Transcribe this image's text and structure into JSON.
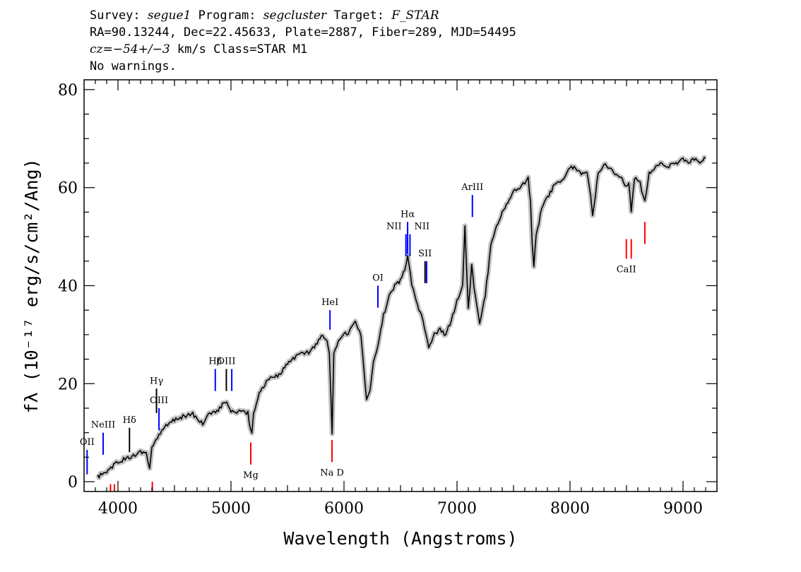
{
  "header": {
    "line1": {
      "survey_label": "Survey: ",
      "survey": "segue1",
      "program_label": " Program: ",
      "program": "segcluster",
      "target_label": " Target: ",
      "target": "F_STAR"
    },
    "line2": "RA=90.13244, Dec=22.45633, Plate=2887, Fiber=289, MJD=54495",
    "line3": {
      "cz_label": "cz=",
      "cz_value": "−54+/−3",
      "rest": " km/s Class=STAR M1"
    },
    "line4": "No warnings."
  },
  "chart_data": {
    "type": "line",
    "title": "",
    "xlabel": "Wavelength (Angstroms)",
    "ylabel": "fλ (10⁻¹⁷ erg/s/cm²/Ang)",
    "xlim": [
      3700,
      9300
    ],
    "ylim": [
      -2,
      82
    ],
    "xticks": [
      4000,
      5000,
      6000,
      7000,
      8000,
      9000
    ],
    "yticks": [
      0,
      20,
      40,
      60,
      80
    ],
    "grid": false,
    "legend": "none",
    "series": [
      {
        "color": "#000000",
        "error_color": "#c0c0c0",
        "x": [
          3820,
          3900,
          3950,
          4000,
          4050,
          4100,
          4150,
          4200,
          4250,
          4280,
          4300,
          4350,
          4400,
          4450,
          4500,
          4550,
          4600,
          4650,
          4700,
          4750,
          4800,
          4850,
          4900,
          4950,
          5000,
          5050,
          5100,
          5150,
          5170,
          5185,
          5200,
          5250,
          5300,
          5350,
          5400,
          5450,
          5500,
          5550,
          5600,
          5650,
          5700,
          5750,
          5800,
          5850,
          5870,
          5885,
          5895,
          5910,
          5950,
          6000,
          6050,
          6100,
          6150,
          6180,
          6200,
          6230,
          6260,
          6300,
          6350,
          6400,
          6450,
          6500,
          6550,
          6564,
          6600,
          6650,
          6700,
          6750,
          6800,
          6850,
          6900,
          6950,
          7000,
          7050,
          7070,
          7100,
          7130,
          7150,
          7200,
          7250,
          7300,
          7350,
          7400,
          7450,
          7500,
          7550,
          7600,
          7630,
          7650,
          7665,
          7680,
          7700,
          7750,
          7800,
          7850,
          7900,
          7950,
          8000,
          8050,
          8100,
          8150,
          8183,
          8200,
          8250,
          8300,
          8350,
          8400,
          8450,
          8498,
          8520,
          8542,
          8570,
          8620,
          8662,
          8700,
          8750,
          8800,
          8850,
          8900,
          8950,
          9000,
          9050,
          9100,
          9150,
          9200
        ],
        "y": [
          1,
          2,
          3,
          4,
          4.5,
          5,
          5.5,
          6,
          6,
          2.5,
          7,
          9,
          11,
          12,
          12.5,
          13,
          13.5,
          14,
          13,
          12,
          13.5,
          14,
          15,
          16.5,
          14.5,
          14,
          14.5,
          14,
          11,
          9.5,
          14,
          18,
          20,
          21,
          21.5,
          22.5,
          24,
          25,
          26,
          26,
          26.5,
          28,
          30,
          29,
          26,
          17,
          10,
          26,
          29,
          30,
          30.5,
          33,
          30,
          22,
          17,
          19,
          24,
          28,
          34,
          38,
          40,
          41,
          44,
          46,
          40,
          36,
          33,
          27,
          30,
          31,
          30,
          33,
          37,
          40,
          52,
          35,
          44,
          40,
          32,
          38,
          48,
          52,
          55,
          57,
          59,
          60,
          61,
          62,
          57,
          49,
          44,
          50,
          56,
          58,
          60,
          61,
          62,
          64,
          64,
          63,
          63,
          58,
          54,
          63,
          65,
          64,
          63,
          62,
          60,
          61,
          55,
          62,
          61,
          57,
          63,
          64,
          65,
          64,
          65,
          65,
          66,
          65,
          66,
          65,
          66
        ]
      }
    ],
    "annotations": [
      {
        "label": "OII",
        "x": 3727,
        "color": "#0000ff",
        "top": 6.5,
        "bottom": 1.5,
        "position": "above"
      },
      {
        "label": "NeIII",
        "x": 3869,
        "color": "#0000ff",
        "top": 10,
        "bottom": 5.5,
        "position": "above"
      },
      {
        "label": "Hδ",
        "x": 4102,
        "color": "#000000",
        "top": 11,
        "bottom": 6,
        "position": "above"
      },
      {
        "label": "Hγ",
        "x": 4341,
        "color": "#000000",
        "top": 19,
        "bottom": 14,
        "position": "above"
      },
      {
        "label": "OIII",
        "x": 4363,
        "color": "#0000ff",
        "top": 15,
        "bottom": 10.5,
        "position": "above"
      },
      {
        "label": "Hβ",
        "x": 4861,
        "color": "#0000ff",
        "top": 23,
        "bottom": 18.5,
        "position": "above"
      },
      {
        "label": "OIII",
        "x": 4959,
        "color": "#000000",
        "top": 23,
        "bottom": 18.5,
        "position": "above"
      },
      {
        "label": "",
        "x": 5007,
        "color": "#0000ff",
        "top": 23,
        "bottom": 18.5,
        "position": "above"
      },
      {
        "label": "HeI",
        "x": 5876,
        "color": "#0000ff",
        "top": 35,
        "bottom": 31,
        "position": "above"
      },
      {
        "label": "OI",
        "x": 6300,
        "color": "#0000ff",
        "top": 40,
        "bottom": 35.5,
        "position": "above"
      },
      {
        "label": "NII",
        "x": 6548,
        "color": "#0000ff",
        "top": 50.5,
        "bottom": 46,
        "position": "above-left"
      },
      {
        "label": "Hα",
        "x": 6563,
        "color": "#0000ff",
        "top": 53,
        "bottom": 46.5,
        "position": "above"
      },
      {
        "label": "NII",
        "x": 6584,
        "color": "#0000ff",
        "top": 50.5,
        "bottom": 46,
        "position": "above-right"
      },
      {
        "label": "SII",
        "x": 6717,
        "color": "#000000",
        "top": 45,
        "bottom": 40.5,
        "position": "above"
      },
      {
        "label": "",
        "x": 6731,
        "color": "#0000ff",
        "top": 45,
        "bottom": 40.5,
        "position": "above"
      },
      {
        "label": "ArIII",
        "x": 7136,
        "color": "#0000ff",
        "top": 58.5,
        "bottom": 54,
        "position": "above"
      },
      {
        "label": "",
        "x": 3934,
        "color": "#ff0000",
        "top": -0.5,
        "bottom": -2,
        "position": "below"
      },
      {
        "label": "",
        "x": 3969,
        "color": "#ff0000",
        "top": -0.5,
        "bottom": -2,
        "position": "below"
      },
      {
        "label": "",
        "x": 4304,
        "color": "#ff0000",
        "top": 0,
        "bottom": -2,
        "position": "below"
      },
      {
        "label": "Mg",
        "x": 5175,
        "color": "#ff0000",
        "top": 8,
        "bottom": 3.5,
        "position": "below"
      },
      {
        "label": "Na D",
        "x": 5894,
        "color": "#ff0000",
        "top": 8.5,
        "bottom": 4,
        "position": "below"
      },
      {
        "label": "CaII",
        "x": 8498,
        "color": "#ff0000",
        "top": 49.5,
        "bottom": 45.5,
        "position": "below"
      },
      {
        "label": "",
        "x": 8542,
        "color": "#ff0000",
        "top": 49.5,
        "bottom": 45.5,
        "position": "below"
      },
      {
        "label": "",
        "x": 8662,
        "color": "#ff0000",
        "top": 53,
        "bottom": 48.5,
        "position": "below"
      }
    ]
  }
}
